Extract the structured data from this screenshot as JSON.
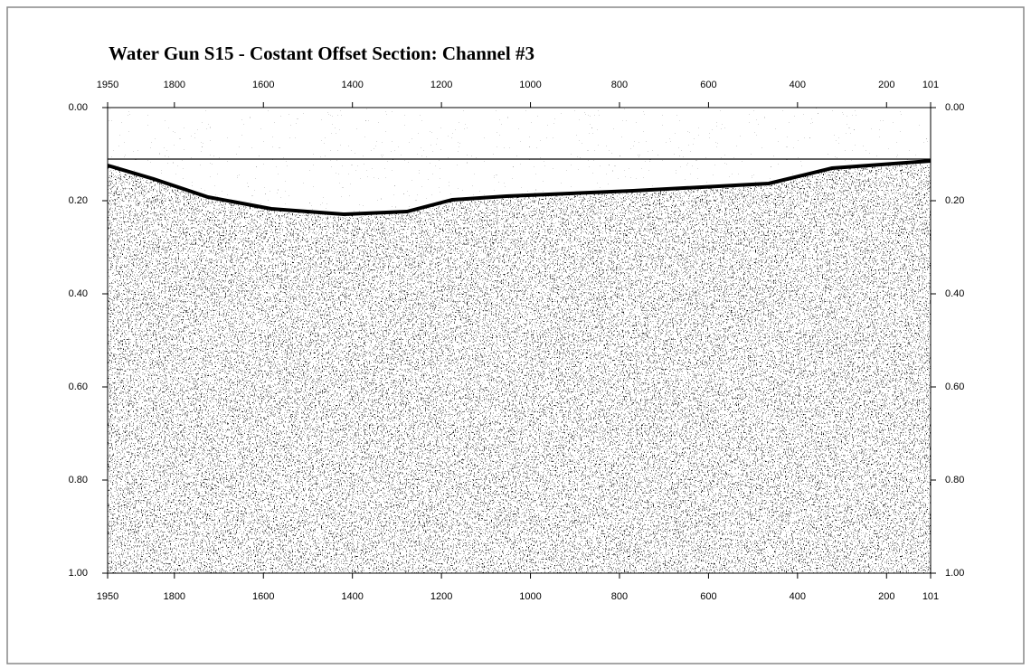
{
  "chart_data": {
    "type": "seismic-section",
    "title": "Water Gun S15 - Costant Offset Section: Channel #3",
    "xlim": [
      1950,
      101
    ],
    "xticks": [
      1950,
      1800,
      1600,
      1400,
      1200,
      1000,
      800,
      600,
      400,
      200,
      101
    ],
    "ylim": [
      0,
      1
    ],
    "yticks": [
      {
        "value": 0,
        "label": "0.00"
      },
      {
        "value": 0.2,
        "label": "0.20"
      },
      {
        "value": 0.4,
        "label": "0.40"
      },
      {
        "value": 0.6,
        "label": "0.60"
      },
      {
        "value": 0.8,
        "label": "0.80"
      },
      {
        "value": 1,
        "label": "1.00"
      }
    ]
  }
}
